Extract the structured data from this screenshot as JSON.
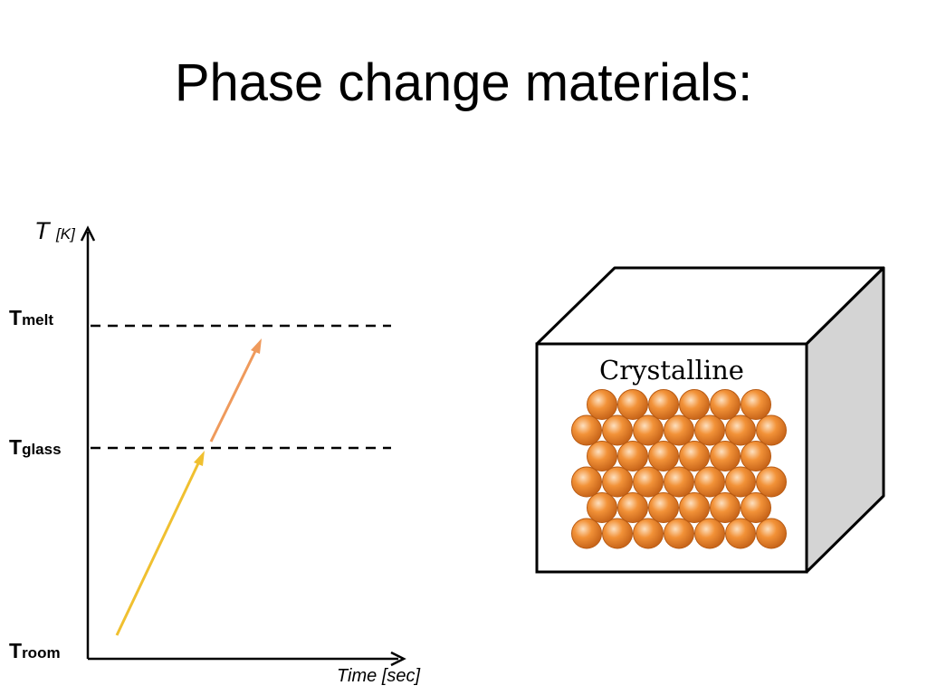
{
  "title": "Phase change materials:",
  "graph": {
    "y_axis_symbol": "T",
    "y_axis_unit": "[K]",
    "x_axis_label": "Time [sec]",
    "levels": [
      {
        "main": "T",
        "sub": "melt"
      },
      {
        "main": "T",
        "sub": "glass"
      },
      {
        "main": "T",
        "sub": "room"
      }
    ],
    "arrow_colors": {
      "lower": "#f0c030",
      "upper": "#ef9a5c"
    }
  },
  "cube": {
    "label": "Crystalline",
    "atom_color": "#f29238",
    "rows": [
      6,
      7,
      6,
      7,
      6,
      7
    ]
  }
}
